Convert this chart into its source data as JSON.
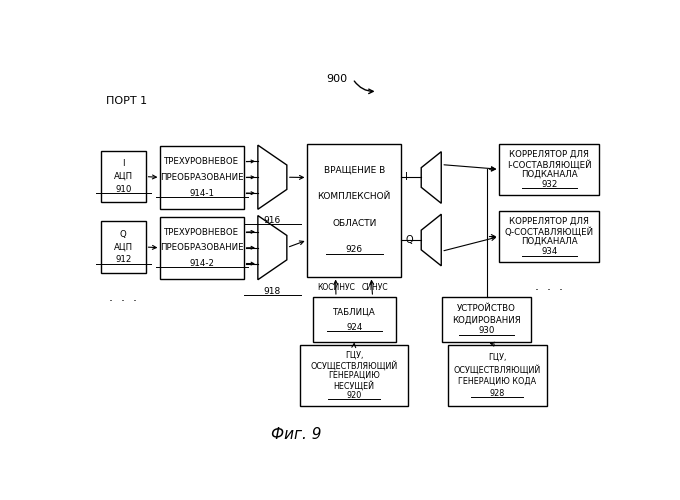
{
  "title": "Фиг. 9",
  "port_label": "ПОРТ 1",
  "fig_label": "900",
  "background_color": "#ffffff",
  "adc_i_lines": [
    "I",
    "АЦП",
    "910"
  ],
  "adc_q_lines": [
    "Q",
    "АЦП",
    "912"
  ],
  "three_i_lines": [
    "ТРЕХУРОВНЕВОЕ",
    "ПРЕОБРАЗОВАНИЕ",
    "914-1"
  ],
  "three_q_lines": [
    "ТРЕХУРОВНЕВОЕ",
    "ПРЕОБРАЗОВАНИЕ",
    "914-2"
  ],
  "mux_i_label": "916",
  "mux_q_label": "918",
  "rot_lines": [
    "ВРАЩЕНИЕ В",
    "КОМПЛЕКСНОЙ",
    "ОБЛАСТИ",
    "926"
  ],
  "table_lines": [
    "ТАБЛИЦА",
    "924"
  ],
  "gcc_lines": [
    "ГЦУ,",
    "ОСУЩЕСТВЛЯЮЩИЙ",
    "ГЕНЕРАЦИЮ",
    "НЕСУЩЕЙ",
    "920"
  ],
  "corr_i_lines": [
    "КОРРЕЛЯТОР ДЛЯ",
    "I-СОСТАВЛЯЮЩЕЙ",
    "ПОДКАНАЛА",
    "932"
  ],
  "corr_q_lines": [
    "КОРРЕЛЯТОР ДЛЯ",
    "Q-СОСТАВЛЯЮЩЕЙ",
    "ПОДКАНАЛА",
    "934"
  ],
  "cod_lines": [
    "УСТРОЙСТВО",
    "КОДИРОВАНИЯ",
    "930"
  ],
  "gcc2_lines": [
    "ГЦУ,",
    "ОСУЩЕСТВЛЯЮЩИЙ",
    "ГЕНЕРАЦИЮ КОДА",
    "928"
  ],
  "cos_label": "КОСИНУС",
  "sin_label": "СИНУС",
  "i_label": "I",
  "q_label": "Q"
}
